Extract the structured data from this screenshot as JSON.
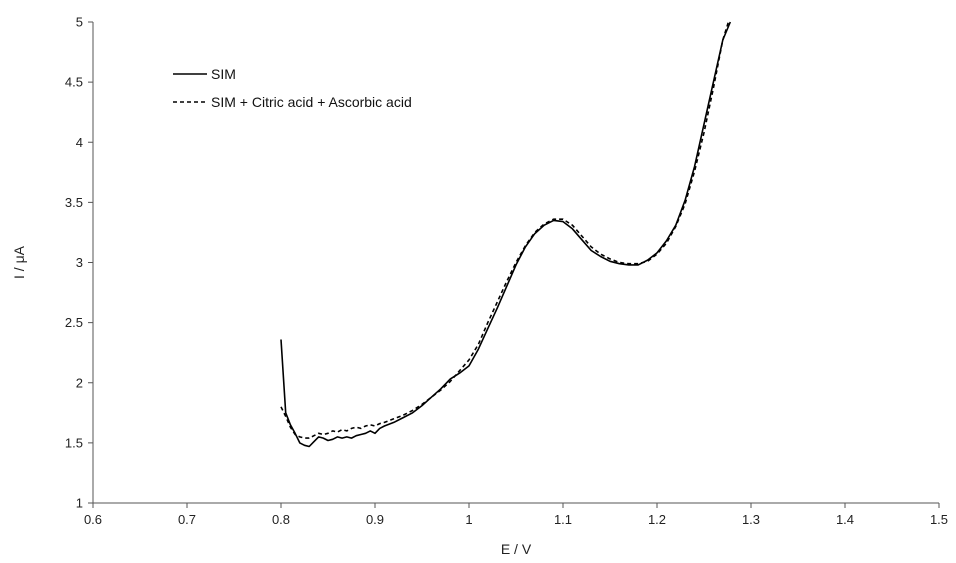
{
  "chart_data": {
    "type": "line",
    "title": "",
    "xlabel": "E / V",
    "ylabel": "I / μA",
    "xlim": [
      0.6,
      1.5
    ],
    "ylim": [
      1,
      5
    ],
    "xticks": [
      "0.6",
      "0.7",
      "0.8",
      "0.9",
      "1",
      "1.1",
      "1.2",
      "1.3",
      "1.4",
      "1.5"
    ],
    "yticks": [
      "1",
      "1.5",
      "2",
      "2.5",
      "3",
      "3.5",
      "4",
      "4.5",
      "5"
    ],
    "grid": false,
    "legend_position": "top-left",
    "series": [
      {
        "name": "SIM",
        "style": "solid",
        "color": "#000000",
        "x": [
          0.8,
          0.805,
          0.81,
          0.815,
          0.82,
          0.825,
          0.83,
          0.835,
          0.84,
          0.845,
          0.85,
          0.855,
          0.86,
          0.865,
          0.87,
          0.875,
          0.88,
          0.885,
          0.89,
          0.895,
          0.9,
          0.905,
          0.91,
          0.92,
          0.93,
          0.94,
          0.95,
          0.96,
          0.97,
          0.98,
          0.99,
          1.0,
          1.01,
          1.02,
          1.03,
          1.04,
          1.05,
          1.06,
          1.07,
          1.08,
          1.09,
          1.1,
          1.11,
          1.12,
          1.13,
          1.14,
          1.15,
          1.16,
          1.17,
          1.18,
          1.19,
          1.2,
          1.21,
          1.22,
          1.23,
          1.24,
          1.25,
          1.26,
          1.27,
          1.278
        ],
        "y": [
          2.36,
          1.75,
          1.65,
          1.58,
          1.5,
          1.48,
          1.47,
          1.51,
          1.55,
          1.54,
          1.52,
          1.53,
          1.55,
          1.54,
          1.55,
          1.54,
          1.56,
          1.57,
          1.58,
          1.6,
          1.58,
          1.62,
          1.64,
          1.67,
          1.71,
          1.75,
          1.81,
          1.88,
          1.95,
          2.03,
          2.08,
          2.14,
          2.28,
          2.45,
          2.62,
          2.8,
          2.98,
          3.13,
          3.24,
          3.31,
          3.35,
          3.34,
          3.28,
          3.19,
          3.1,
          3.05,
          3.01,
          2.99,
          2.98,
          2.98,
          3.02,
          3.08,
          3.18,
          3.31,
          3.52,
          3.8,
          4.15,
          4.5,
          4.85,
          5.0
        ]
      },
      {
        "name": "SIM + Citric acid + Ascorbic acid",
        "style": "dashed",
        "color": "#000000",
        "x": [
          0.8,
          0.805,
          0.81,
          0.815,
          0.82,
          0.825,
          0.83,
          0.835,
          0.84,
          0.845,
          0.85,
          0.855,
          0.86,
          0.865,
          0.87,
          0.875,
          0.88,
          0.885,
          0.89,
          0.895,
          0.9,
          0.905,
          0.91,
          0.92,
          0.93,
          0.94,
          0.95,
          0.96,
          0.97,
          0.98,
          0.99,
          1.0,
          1.01,
          1.02,
          1.03,
          1.04,
          1.05,
          1.06,
          1.07,
          1.08,
          1.09,
          1.1,
          1.11,
          1.12,
          1.13,
          1.14,
          1.15,
          1.16,
          1.17,
          1.18,
          1.19,
          1.2,
          1.21,
          1.22,
          1.23,
          1.24,
          1.25,
          1.26,
          1.27,
          1.276
        ],
        "y": [
          1.8,
          1.72,
          1.63,
          1.57,
          1.55,
          1.54,
          1.54,
          1.56,
          1.58,
          1.57,
          1.58,
          1.6,
          1.59,
          1.61,
          1.6,
          1.62,
          1.63,
          1.62,
          1.64,
          1.65,
          1.64,
          1.66,
          1.67,
          1.7,
          1.73,
          1.77,
          1.82,
          1.88,
          1.94,
          2.01,
          2.1,
          2.19,
          2.32,
          2.5,
          2.67,
          2.84,
          3.0,
          3.14,
          3.25,
          3.32,
          3.36,
          3.36,
          3.31,
          3.22,
          3.13,
          3.07,
          3.03,
          3.0,
          2.99,
          2.99,
          3.01,
          3.07,
          3.16,
          3.3,
          3.49,
          3.76,
          4.08,
          4.45,
          4.85,
          5.0
        ]
      }
    ]
  }
}
